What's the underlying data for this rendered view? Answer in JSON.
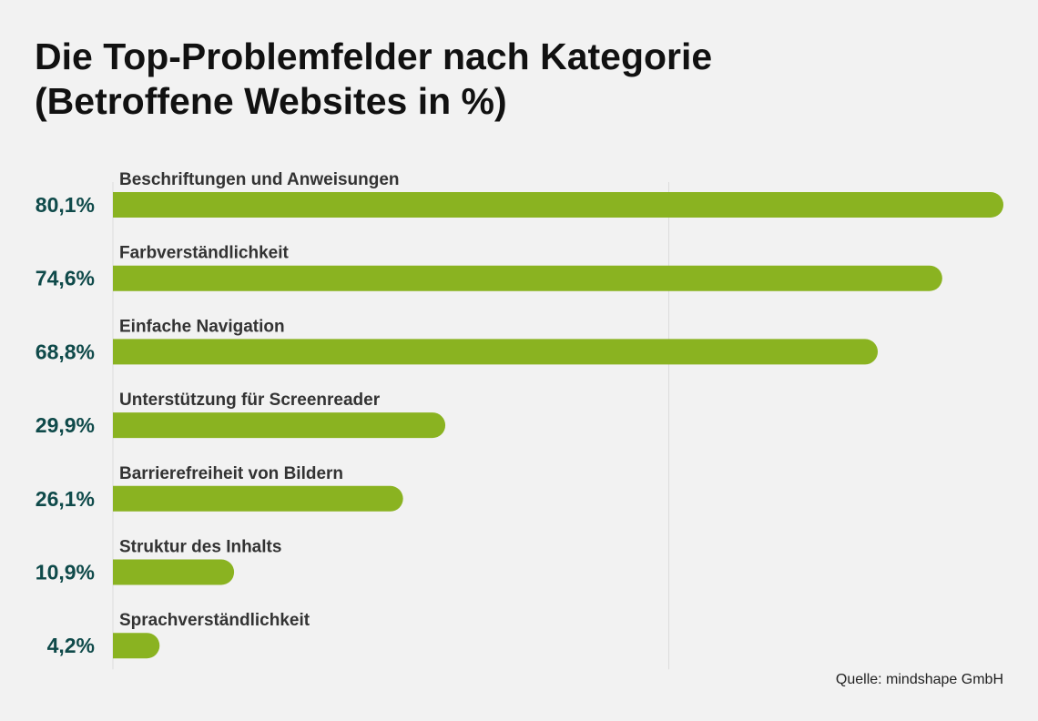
{
  "title_line1": "Die Top-Problemfelder nach Kategorie",
  "title_line2": "(Betroffene Websites in %)",
  "source": "Quelle: mindshape GmbH",
  "colors": {
    "bar": "#8ab321",
    "value_text": "#0f4a4a",
    "category_text": "#333333",
    "gridline": "#dcdcdc",
    "background": "#f2f2f2"
  },
  "chart_data": {
    "type": "bar",
    "orientation": "horizontal",
    "categories": [
      "Beschriftungen und Anweisungen",
      "Farbverständlichkeit",
      "Einfache Navigation",
      "Unterstützung für Screenreader",
      "Barrierefreiheit von Bildern",
      "Struktur des Inhalts",
      "Sprachverständlichkeit"
    ],
    "values": [
      80.1,
      74.6,
      68.8,
      29.9,
      26.1,
      10.9,
      4.2
    ],
    "value_labels": [
      "80,1%",
      "74,6%",
      "68,8%",
      "29,9%",
      "26,1%",
      "10,9%",
      "4,2%"
    ],
    "xlim": [
      0,
      80.1
    ],
    "gridlines_at": [
      50
    ],
    "title": "Die Top-Problemfelder nach Kategorie (Betroffene Websites in %)"
  }
}
